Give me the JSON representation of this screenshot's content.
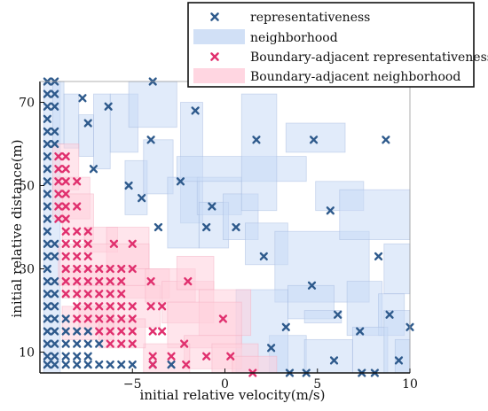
{
  "chart_data": {
    "type": "scatter",
    "title": "",
    "xlabel": "initial relative velocity(m/s)",
    "ylabel": "initial relative distance(m)",
    "xlim": [
      -10,
      10
    ],
    "ylim": [
      5,
      75
    ],
    "xticks": [
      -5,
      0,
      5,
      10
    ],
    "yticks": [
      10,
      30,
      50,
      70
    ],
    "grid": false,
    "legend_position": "top-right",
    "colors": {
      "representativeness": "#2e5a8c",
      "neighborhood": "#c9daf5",
      "boundary_representativeness": "#e0306e",
      "boundary_neighborhood": "#ffcfdc"
    },
    "series": [
      {
        "name": "representativeness",
        "marker": "x",
        "points": [
          [
            -9.6,
            75
          ],
          [
            -9.2,
            75
          ],
          [
            -9.6,
            72
          ],
          [
            -9.2,
            72
          ],
          [
            -9.6,
            69
          ],
          [
            -9.2,
            69
          ],
          [
            -9.6,
            66
          ],
          [
            -9.6,
            63
          ],
          [
            -9.2,
            63
          ],
          [
            -9.6,
            60
          ],
          [
            -9.2,
            60
          ],
          [
            -9.6,
            57
          ],
          [
            -9.6,
            54
          ],
          [
            -9.6,
            51
          ],
          [
            -9.6,
            48
          ],
          [
            -9.6,
            45
          ],
          [
            -9.6,
            42
          ],
          [
            -9.6,
            39
          ],
          [
            -9.6,
            36
          ],
          [
            -9.2,
            36
          ],
          [
            -9.6,
            33
          ],
          [
            -9.2,
            33
          ],
          [
            -9.6,
            30
          ],
          [
            -9.6,
            27
          ],
          [
            -9.2,
            27
          ],
          [
            -9.6,
            24
          ],
          [
            -9.2,
            24
          ],
          [
            -9.6,
            21
          ],
          [
            -9.2,
            21
          ],
          [
            -9.6,
            18
          ],
          [
            -9.2,
            18
          ],
          [
            -9.6,
            15
          ],
          [
            -9.2,
            15
          ],
          [
            -9.6,
            12
          ],
          [
            -9.2,
            12
          ],
          [
            -9.6,
            9
          ],
          [
            -9.2,
            9
          ],
          [
            -9.6,
            7
          ],
          [
            -9.2,
            7
          ],
          [
            -8.6,
            12
          ],
          [
            -8.0,
            12
          ],
          [
            -7.4,
            12
          ],
          [
            -6.8,
            12
          ],
          [
            -8.6,
            9
          ],
          [
            -8.0,
            9
          ],
          [
            -7.4,
            9
          ],
          [
            -8.0,
            15
          ],
          [
            -7.4,
            15
          ],
          [
            -8.6,
            7
          ],
          [
            -8.0,
            7
          ],
          [
            -7.4,
            7
          ],
          [
            -6.8,
            7
          ],
          [
            -6.2,
            7
          ],
          [
            -5.6,
            7
          ],
          [
            -5.0,
            7
          ],
          [
            -3.9,
            7
          ],
          [
            -2.9,
            7
          ],
          [
            -8.6,
            18
          ],
          [
            -8.6,
            15
          ],
          [
            -3.9,
            75
          ],
          [
            -4.0,
            61
          ],
          [
            -1.6,
            68
          ],
          [
            -7.7,
            71
          ],
          [
            -7.4,
            65
          ],
          [
            -6.3,
            69
          ],
          [
            -7.1,
            54
          ],
          [
            -5.2,
            50
          ],
          [
            -4.5,
            47
          ],
          [
            -3.6,
            40
          ],
          [
            -2.4,
            51
          ],
          [
            -1.0,
            40
          ],
          [
            -0.7,
            45
          ],
          [
            0.6,
            40
          ],
          [
            1.7,
            61
          ],
          [
            2.1,
            33
          ],
          [
            3.3,
            16
          ],
          [
            4.8,
            61
          ],
          [
            5.7,
            44
          ],
          [
            4.7,
            26
          ],
          [
            6.1,
            19
          ],
          [
            8.3,
            33
          ],
          [
            8.7,
            61
          ],
          [
            8.9,
            19
          ],
          [
            9.4,
            8
          ],
          [
            10.0,
            16
          ],
          [
            7.3,
            15
          ],
          [
            5.9,
            8
          ],
          [
            4.4,
            5
          ],
          [
            3.5,
            5
          ],
          [
            2.5,
            11
          ],
          [
            7.4,
            5
          ],
          [
            8.1,
            5
          ]
        ]
      },
      {
        "name": "Boundary-adjacent representativeness",
        "marker": "x",
        "points": [
          [
            -9.0,
            57
          ],
          [
            -8.6,
            57
          ],
          [
            -9.0,
            54
          ],
          [
            -8.6,
            54
          ],
          [
            -9.0,
            51
          ],
          [
            -8.6,
            51
          ],
          [
            -8.0,
            51
          ],
          [
            -9.0,
            48
          ],
          [
            -8.6,
            48
          ],
          [
            -9.0,
            45
          ],
          [
            -8.6,
            45
          ],
          [
            -8.0,
            45
          ],
          [
            -9.0,
            42
          ],
          [
            -8.6,
            42
          ],
          [
            -8.6,
            39
          ],
          [
            -8.0,
            39
          ],
          [
            -7.4,
            39
          ],
          [
            -8.6,
            36
          ],
          [
            -8.0,
            36
          ],
          [
            -7.4,
            36
          ],
          [
            -6.0,
            36
          ],
          [
            -5.0,
            36
          ],
          [
            -8.6,
            33
          ],
          [
            -8.0,
            33
          ],
          [
            -7.4,
            33
          ],
          [
            -8.6,
            30
          ],
          [
            -8.0,
            30
          ],
          [
            -7.4,
            30
          ],
          [
            -6.8,
            30
          ],
          [
            -6.2,
            30
          ],
          [
            -5.6,
            30
          ],
          [
            -5.0,
            30
          ],
          [
            -8.6,
            27
          ],
          [
            -8.0,
            27
          ],
          [
            -7.4,
            27
          ],
          [
            -6.8,
            27
          ],
          [
            -6.2,
            27
          ],
          [
            -5.6,
            27
          ],
          [
            -4.0,
            27
          ],
          [
            -2.0,
            27
          ],
          [
            -8.6,
            24
          ],
          [
            -8.0,
            24
          ],
          [
            -7.4,
            24
          ],
          [
            -6.8,
            24
          ],
          [
            -6.2,
            24
          ],
          [
            -5.6,
            24
          ],
          [
            -8.0,
            21
          ],
          [
            -7.4,
            21
          ],
          [
            -6.8,
            21
          ],
          [
            -6.2,
            21
          ],
          [
            -5.6,
            21
          ],
          [
            -5.0,
            21
          ],
          [
            -4.0,
            21
          ],
          [
            -3.4,
            21
          ],
          [
            -8.0,
            18
          ],
          [
            -7.4,
            18
          ],
          [
            -6.8,
            18
          ],
          [
            -6.2,
            18
          ],
          [
            -5.6,
            18
          ],
          [
            -5.0,
            18
          ],
          [
            -0.1,
            18
          ],
          [
            -6.8,
            15
          ],
          [
            -6.2,
            15
          ],
          [
            -5.6,
            15
          ],
          [
            -5.0,
            15
          ],
          [
            -3.9,
            15
          ],
          [
            -3.4,
            15
          ],
          [
            -6.2,
            12
          ],
          [
            -5.6,
            12
          ],
          [
            -5.0,
            12
          ],
          [
            -2.2,
            12
          ],
          [
            -3.9,
            9
          ],
          [
            -2.9,
            9
          ],
          [
            -1.0,
            9
          ],
          [
            0.3,
            9
          ],
          [
            -3.9,
            7
          ],
          [
            -2.1,
            7
          ],
          [
            1.5,
            5
          ]
        ]
      },
      {
        "name": "neighborhood",
        "regions": [
          [
            -9.8,
            -8.9,
            5,
            75
          ],
          [
            -9.3,
            -8.7,
            60,
            76
          ],
          [
            -8.7,
            -7.9,
            59,
            72
          ],
          [
            -7.9,
            -7.1,
            57,
            67
          ],
          [
            -7.1,
            -6.2,
            54,
            72
          ],
          [
            -6.2,
            -4.7,
            58,
            72
          ],
          [
            -5.2,
            -2.6,
            64,
            75
          ],
          [
            -5.4,
            -4.2,
            43,
            56
          ],
          [
            -4.4,
            -2.8,
            48,
            61
          ],
          [
            -2.4,
            -1.2,
            41,
            70
          ],
          [
            -3.1,
            -1.4,
            35,
            52
          ],
          [
            -1.5,
            0.9,
            43,
            52
          ],
          [
            -1.4,
            0.2,
            35,
            46
          ],
          [
            -0.1,
            1.8,
            37,
            48
          ],
          [
            1.1,
            3.4,
            31,
            41
          ],
          [
            2.7,
            7.8,
            22,
            39
          ],
          [
            -2.6,
            4.4,
            51,
            57
          ],
          [
            0.9,
            2.8,
            44,
            72
          ],
          [
            3.3,
            6.5,
            58,
            65
          ],
          [
            4.9,
            7.5,
            44,
            51
          ],
          [
            6.2,
            10.0,
            37,
            49
          ],
          [
            8.6,
            10.0,
            24,
            36
          ],
          [
            3.4,
            5.9,
            18,
            26
          ],
          [
            4.3,
            6.3,
            17,
            20
          ],
          [
            6.6,
            8.5,
            14,
            27
          ],
          [
            8.3,
            9.7,
            14,
            24
          ],
          [
            2.4,
            4.4,
            5,
            14
          ],
          [
            4.3,
            6.9,
            5,
            13
          ],
          [
            6.9,
            8.8,
            5,
            16
          ],
          [
            8.6,
            10.0,
            5,
            20
          ],
          [
            0.6,
            3.4,
            5,
            25
          ],
          [
            9.2,
            10.0,
            5,
            13
          ]
        ]
      },
      {
        "name": "Boundary-adjacent neighborhood",
        "regions": [
          [
            -9.3,
            -7.9,
            49,
            60
          ],
          [
            -9.3,
            -7.3,
            42,
            52
          ],
          [
            -8.8,
            -7.1,
            37,
            48
          ],
          [
            -7.6,
            -5.8,
            34,
            40
          ],
          [
            -6.4,
            -4.1,
            30,
            40
          ],
          [
            -9.0,
            -4.1,
            26,
            36
          ],
          [
            -8.8,
            -3.0,
            23,
            30
          ],
          [
            -7.9,
            -3.5,
            16,
            26
          ],
          [
            -4.3,
            -1.6,
            22,
            30
          ],
          [
            -3.4,
            -0.6,
            17,
            27
          ],
          [
            -2.6,
            -0.6,
            25,
            33
          ],
          [
            -1.4,
            1.4,
            14,
            25
          ],
          [
            -3.1,
            0.9,
            11,
            22
          ],
          [
            -2.2,
            0.9,
            6,
            14
          ],
          [
            -4.4,
            -1.9,
            5,
            12
          ],
          [
            -0.7,
            1.8,
            5,
            12
          ],
          [
            0.4,
            2.8,
            5,
            9
          ],
          [
            -8.8,
            -6.0,
            13,
            21
          ],
          [
            -6.8,
            -4.3,
            11,
            18
          ]
        ]
      }
    ]
  },
  "legend": {
    "items": [
      "representativeness",
      "neighborhood",
      "Boundary-adjacent representativeness",
      "Boundary-adjacent neighborhood"
    ]
  }
}
